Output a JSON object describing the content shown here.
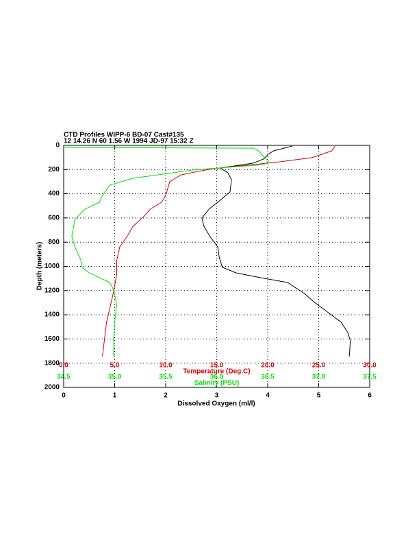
{
  "chart_data": {
    "type": "line",
    "title": "CTD Profiles WIPP-6 BD-07 Cast#135",
    "subtitle": "12 14.26 N  60  1.56 W  1994 JD-97 15:32 Z",
    "x_label": "Dissolved Oxygen (ml/l)",
    "y_label": "Depth (meters)",
    "xlim": [
      0,
      6
    ],
    "xticks": [
      0,
      1,
      2,
      3,
      4,
      5,
      6
    ],
    "ylim": [
      2000,
      0
    ],
    "yticks": [
      0,
      200,
      400,
      600,
      800,
      1000,
      1200,
      1400,
      1600,
      1800,
      2000
    ],
    "grid": true,
    "temperature_axis": {
      "label": "Temperature (Deg.C)",
      "color": "#d00000",
      "lim": [
        0,
        30
      ],
      "ticks": [
        {
          "value": 0,
          "label": "0.0"
        },
        {
          "value": 5,
          "label": "5.0"
        },
        {
          "value": 10,
          "label": "10.0"
        },
        {
          "value": 15,
          "label": "15.0"
        },
        {
          "value": 20,
          "label": "20.0"
        },
        {
          "value": 25,
          "label": "25.0"
        },
        {
          "value": 30,
          "label": "30.0"
        }
      ]
    },
    "salinity_axis": {
      "label": "Salinity (PSU)",
      "color": "#00e000",
      "lim": [
        34.5,
        37.5
      ],
      "ticks": [
        {
          "value": 34.5,
          "label": "34.5"
        },
        {
          "value": 35,
          "label": "35.0"
        },
        {
          "value": 35.5,
          "label": "35.5"
        },
        {
          "value": 36,
          "label": "36.0"
        },
        {
          "value": 36.5,
          "label": "36.5"
        },
        {
          "value": 37,
          "label": "37.0"
        },
        {
          "value": 37.5,
          "label": "37.5"
        }
      ]
    },
    "series": [
      {
        "color": "#000000",
        "axis": "x",
        "depth": [
          6,
          23,
          45,
          74,
          113,
          147,
          187,
          227,
          283,
          385,
          470,
          527,
          601,
          669,
          754,
          839,
          924,
          1008,
          1054,
          1093,
          1133,
          1178,
          1224,
          1292,
          1377,
          1462,
          1547,
          1615,
          1688,
          1745
        ],
        "values": [
          4.48,
          4.32,
          4.12,
          4.01,
          3.92,
          3.72,
          3.07,
          3.22,
          3.29,
          3.26,
          3.02,
          2.85,
          2.71,
          2.75,
          2.87,
          3.02,
          3.05,
          3.11,
          3.38,
          3.85,
          4.39,
          4.55,
          4.72,
          4.9,
          5.17,
          5.44,
          5.57,
          5.62,
          5.61,
          5.6
        ]
      },
      {
        "color": "#d00000",
        "axis": "temperature_axis",
        "depth": [
          6,
          45,
          74,
          102,
          142,
          170,
          193,
          215,
          244,
          300,
          414,
          470,
          527,
          584,
          669,
          754,
          839,
          952,
          1065,
          1207,
          1320,
          1462,
          1603,
          1745
        ],
        "values": [
          26.6,
          26.3,
          25.3,
          24.3,
          20.6,
          17.2,
          14.6,
          13.2,
          11.5,
          10.4,
          10.0,
          9.6,
          8.5,
          7.9,
          6.8,
          6.2,
          5.5,
          5.2,
          5.2,
          4.9,
          4.6,
          4.2,
          4.0,
          3.8
        ]
      },
      {
        "color": "#00e000",
        "axis": "salinity_axis",
        "depth": [
          17,
          23,
          45,
          91,
          130,
          159,
          187,
          204,
          244,
          272,
          329,
          414,
          470,
          527,
          612,
          754,
          839,
          952,
          1008,
          1054,
          1093,
          1133,
          1178,
          1235,
          1320,
          1462,
          1603,
          1745
        ],
        "values": [
          34.51,
          36.36,
          36.41,
          36.46,
          36.51,
          36.46,
          36.02,
          35.76,
          35.42,
          35.18,
          34.95,
          34.88,
          34.85,
          34.71,
          34.61,
          34.58,
          34.61,
          34.67,
          34.68,
          34.75,
          34.85,
          34.95,
          34.98,
          35.0,
          35.02,
          35.0,
          34.99,
          34.99
        ]
      }
    ]
  }
}
